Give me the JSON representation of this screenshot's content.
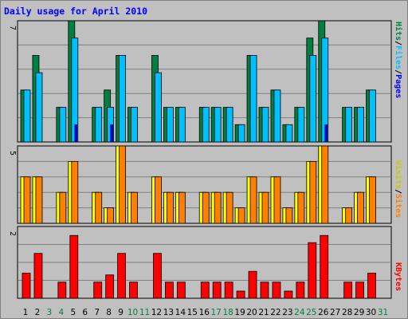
{
  "title": "Daily usage for April 2010",
  "colors": {
    "hits": "#008040",
    "files": "#00c0ff",
    "pages": "#0000ff",
    "visits": "#ffff00",
    "sites": "#ff8000",
    "kbytes": "#ff0000",
    "weekday_text": "#000000",
    "weekend_text": "#008040",
    "background": "#c0c0c0",
    "plot_area": "#c0c0c0",
    "grid": "#808080"
  },
  "legend": {
    "top": {
      "pages": "Pages",
      "files": "Files",
      "hits": "Hits",
      "sep": "/"
    },
    "middle": {
      "sites": "Sites",
      "visits": "Visits",
      "sep": "/"
    },
    "bottom": {
      "kbytes": "KBytes"
    }
  },
  "chart_data": [
    {
      "type": "bar",
      "panel": "hits-files-pages",
      "y_max_label": "7",
      "ylim": [
        0,
        7
      ],
      "grid": true,
      "categories": [
        "1",
        "2",
        "3",
        "4",
        "5",
        "6",
        "7",
        "8",
        "9",
        "10",
        "11",
        "12",
        "13",
        "14",
        "15",
        "16",
        "17",
        "18",
        "19",
        "20",
        "21",
        "22",
        "23",
        "24",
        "25",
        "26",
        "27",
        "28",
        "29",
        "30",
        "31"
      ],
      "weekend_days": [
        3,
        4,
        10,
        11,
        17,
        18,
        24,
        25,
        31
      ],
      "series": [
        {
          "name": "Hits",
          "values": [
            3,
            5,
            0,
            2,
            7,
            0,
            2,
            3,
            5,
            2,
            0,
            5,
            2,
            2,
            0,
            2,
            2,
            2,
            1,
            5,
            2,
            3,
            1,
            2,
            6,
            7,
            0,
            2,
            2,
            3,
            0
          ]
        },
        {
          "name": "Files",
          "values": [
            3,
            4,
            0,
            2,
            6,
            0,
            2,
            2,
            5,
            2,
            0,
            4,
            2,
            2,
            0,
            2,
            2,
            2,
            1,
            5,
            2,
            3,
            1,
            2,
            5,
            6,
            0,
            2,
            2,
            3,
            0
          ]
        },
        {
          "name": "Pages",
          "values": [
            0,
            0,
            0,
            0,
            1,
            0,
            0,
            1,
            0,
            0,
            0,
            0,
            0,
            0,
            0,
            0,
            0,
            0,
            0,
            0,
            0,
            0,
            0,
            0,
            0,
            1,
            0,
            0,
            0,
            0,
            0
          ]
        }
      ]
    },
    {
      "type": "bar",
      "panel": "visits-sites",
      "y_max_label": "5",
      "ylim": [
        0,
        5
      ],
      "grid": true,
      "categories": [
        "1",
        "2",
        "3",
        "4",
        "5",
        "6",
        "7",
        "8",
        "9",
        "10",
        "11",
        "12",
        "13",
        "14",
        "15",
        "16",
        "17",
        "18",
        "19",
        "20",
        "21",
        "22",
        "23",
        "24",
        "25",
        "26",
        "27",
        "28",
        "29",
        "30",
        "31"
      ],
      "series": [
        {
          "name": "Visits",
          "values": [
            3,
            3,
            0,
            2,
            4,
            0,
            2,
            1,
            5,
            2,
            0,
            3,
            2,
            2,
            0,
            2,
            2,
            2,
            1,
            3,
            2,
            3,
            1,
            2,
            4,
            5,
            0,
            1,
            2,
            3,
            0
          ]
        },
        {
          "name": "Sites",
          "values": [
            3,
            3,
            0,
            2,
            4,
            0,
            2,
            1,
            5,
            2,
            0,
            3,
            2,
            2,
            0,
            2,
            2,
            2,
            1,
            3,
            2,
            3,
            1,
            2,
            4,
            5,
            0,
            1,
            2,
            3,
            0
          ]
        }
      ]
    },
    {
      "type": "bar",
      "panel": "kbytes",
      "y_max_label": "2",
      "ylim": [
        0,
        2
      ],
      "grid": true,
      "categories": [
        "1",
        "2",
        "3",
        "4",
        "5",
        "6",
        "7",
        "8",
        "9",
        "10",
        "11",
        "12",
        "13",
        "14",
        "15",
        "16",
        "17",
        "18",
        "19",
        "20",
        "21",
        "22",
        "23",
        "24",
        "25",
        "26",
        "27",
        "28",
        "29",
        "30",
        "31"
      ],
      "series": [
        {
          "name": "KBytes",
          "values": [
            0.7,
            1.25,
            0,
            0.45,
            1.75,
            0,
            0.45,
            0.65,
            1.25,
            0.45,
            0,
            1.25,
            0.45,
            0.45,
            0,
            0.45,
            0.45,
            0.45,
            0.2,
            0.75,
            0.45,
            0.45,
            0.2,
            0.45,
            1.55,
            1.75,
            0,
            0.45,
            0.45,
            0.7,
            0
          ]
        }
      ]
    }
  ]
}
